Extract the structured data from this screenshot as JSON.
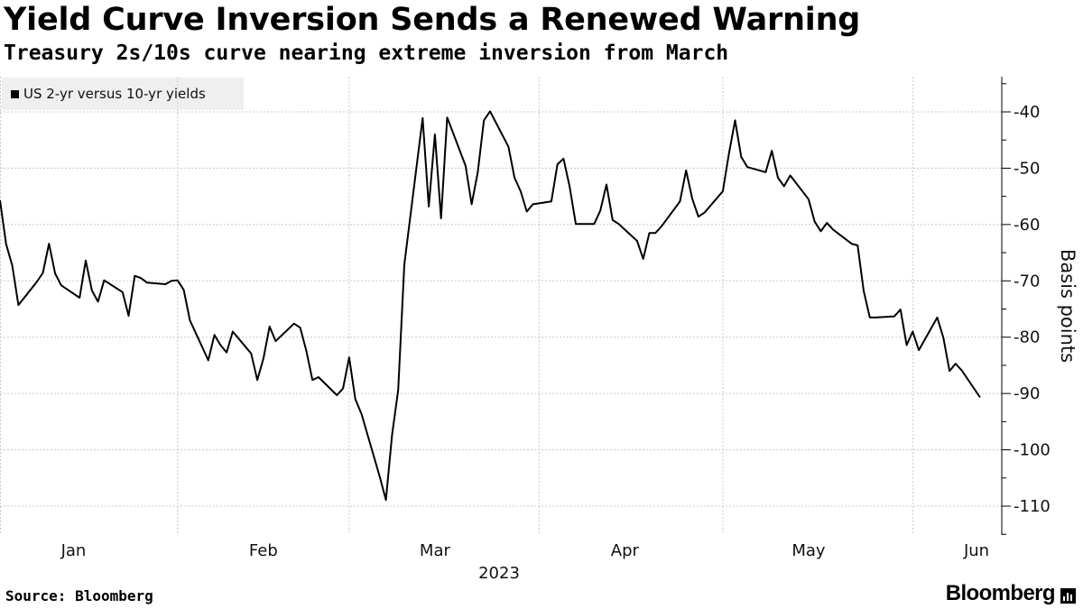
{
  "title": "Yield Curve Inversion Sends a Renewed Warning",
  "subtitle": "Treasury 2s/10s curve nearing extreme inversion from March",
  "source": "Source: Bloomberg",
  "brand": "Bloomberg",
  "chart_data": {
    "type": "line",
    "title": "Yield Curve Inversion Sends a Renewed Warning",
    "subtitle": "Treasury 2s/10s curve nearing extreme inversion from March",
    "ylabel": "Basis points",
    "xlabel": "2023",
    "ylim": [
      -115,
      -35
    ],
    "yticks": [
      -40,
      -50,
      -60,
      -70,
      -80,
      -90,
      -100,
      -110
    ],
    "ytick_labels": [
      "-40",
      "-50",
      "-60",
      "-70",
      "-80",
      "-90",
      "-100",
      "-110"
    ],
    "xticks": [
      "Jan",
      "Feb",
      "Mar",
      "Apr",
      "May",
      "Jun"
    ],
    "xtick_dates": [
      "2023-01-15",
      "2023-02-15",
      "2023-03-15",
      "2023-04-15",
      "2023-05-15",
      "2023-06-15"
    ],
    "month_boundaries": [
      "2023-02-01",
      "2023-03-01",
      "2023-04-01",
      "2023-05-01",
      "2023-06-01"
    ],
    "year_label": "2023",
    "grid": true,
    "y_axis_position": "right",
    "legend_position": "top-left",
    "series": [
      {
        "name": "US 2-yr versus 10-yr yields",
        "color": "#000000",
        "points": [
          [
            "2023-01-03",
            -55.7
          ],
          [
            "2023-01-04",
            -63.5
          ],
          [
            "2023-01-05",
            -67.3
          ],
          [
            "2023-01-06",
            -74.3
          ],
          [
            "2023-01-09",
            -70.2
          ],
          [
            "2023-01-10",
            -68.6
          ],
          [
            "2023-01-11",
            -63.4
          ],
          [
            "2023-01-12",
            -68.7
          ],
          [
            "2023-01-13",
            -70.8
          ],
          [
            "2023-01-16",
            -73.0
          ],
          [
            "2023-01-17",
            -66.4
          ],
          [
            "2023-01-18",
            -71.7
          ],
          [
            "2023-01-19",
            -73.7
          ],
          [
            "2023-01-20",
            -69.9
          ],
          [
            "2023-01-23",
            -72.0
          ],
          [
            "2023-01-24",
            -76.2
          ],
          [
            "2023-01-25",
            -69.1
          ],
          [
            "2023-01-26",
            -69.5
          ],
          [
            "2023-01-27",
            -70.3
          ],
          [
            "2023-01-30",
            -70.6
          ],
          [
            "2023-01-31",
            -70.0
          ],
          [
            "2023-02-01",
            -69.9
          ],
          [
            "2023-02-02",
            -71.6
          ],
          [
            "2023-02-03",
            -77.0
          ],
          [
            "2023-02-06",
            -84.1
          ],
          [
            "2023-02-07",
            -79.6
          ],
          [
            "2023-02-08",
            -81.4
          ],
          [
            "2023-02-09",
            -82.7
          ],
          [
            "2023-02-10",
            -79.0
          ],
          [
            "2023-02-13",
            -82.9
          ],
          [
            "2023-02-14",
            -87.6
          ],
          [
            "2023-02-15",
            -83.8
          ],
          [
            "2023-02-16",
            -78.1
          ],
          [
            "2023-02-17",
            -80.7
          ],
          [
            "2023-02-20",
            -77.6
          ],
          [
            "2023-02-21",
            -78.3
          ],
          [
            "2023-02-22",
            -82.4
          ],
          [
            "2023-02-23",
            -87.6
          ],
          [
            "2023-02-24",
            -87.1
          ],
          [
            "2023-02-27",
            -90.3
          ],
          [
            "2023-02-28",
            -89.1
          ],
          [
            "2023-03-01",
            -83.6
          ],
          [
            "2023-03-02",
            -91.0
          ],
          [
            "2023-03-03",
            -93.6
          ],
          [
            "2023-03-06",
            -104.8
          ],
          [
            "2023-03-07",
            -108.9
          ],
          [
            "2023-03-08",
            -97.4
          ],
          [
            "2023-03-09",
            -89.4
          ],
          [
            "2023-03-10",
            -67.1
          ],
          [
            "2023-03-13",
            -41.1
          ],
          [
            "2023-03-14",
            -56.8
          ],
          [
            "2023-03-15",
            -44.0
          ],
          [
            "2023-03-16",
            -58.9
          ],
          [
            "2023-03-17",
            -41.0
          ],
          [
            "2023-03-20",
            -49.6
          ],
          [
            "2023-03-21",
            -56.4
          ],
          [
            "2023-03-22",
            -50.7
          ],
          [
            "2023-03-23",
            -41.5
          ],
          [
            "2023-03-24",
            -39.9
          ],
          [
            "2023-03-27",
            -46.2
          ],
          [
            "2023-03-28",
            -51.7
          ],
          [
            "2023-03-29",
            -54.1
          ],
          [
            "2023-03-30",
            -57.7
          ],
          [
            "2023-03-31",
            -56.4
          ],
          [
            "2023-04-03",
            -55.9
          ],
          [
            "2023-04-04",
            -49.3
          ],
          [
            "2023-04-05",
            -48.3
          ],
          [
            "2023-04-06",
            -53.3
          ],
          [
            "2023-04-07",
            -59.9
          ],
          [
            "2023-04-10",
            -59.9
          ],
          [
            "2023-04-11",
            -57.5
          ],
          [
            "2023-04-12",
            -52.9
          ],
          [
            "2023-04-13",
            -59.2
          ],
          [
            "2023-04-14",
            -59.9
          ],
          [
            "2023-04-17",
            -62.9
          ],
          [
            "2023-04-18",
            -66.1
          ],
          [
            "2023-04-19",
            -61.5
          ],
          [
            "2023-04-20",
            -61.5
          ],
          [
            "2023-04-21",
            -60.3
          ],
          [
            "2023-04-24",
            -55.9
          ],
          [
            "2023-04-25",
            -50.4
          ],
          [
            "2023-04-26",
            -55.4
          ],
          [
            "2023-04-27",
            -58.6
          ],
          [
            "2023-04-28",
            -57.9
          ],
          [
            "2023-05-01",
            -54.1
          ],
          [
            "2023-05-02",
            -47.4
          ],
          [
            "2023-05-03",
            -41.5
          ],
          [
            "2023-05-04",
            -48.0
          ],
          [
            "2023-05-05",
            -49.8
          ],
          [
            "2023-05-08",
            -50.7
          ],
          [
            "2023-05-09",
            -46.9
          ],
          [
            "2023-05-10",
            -51.7
          ],
          [
            "2023-05-11",
            -53.2
          ],
          [
            "2023-05-12",
            -51.3
          ],
          [
            "2023-05-15",
            -55.5
          ],
          [
            "2023-05-16",
            -59.5
          ],
          [
            "2023-05-17",
            -61.2
          ],
          [
            "2023-05-18",
            -59.7
          ],
          [
            "2023-05-19",
            -60.9
          ],
          [
            "2023-05-22",
            -63.4
          ],
          [
            "2023-05-23",
            -63.7
          ],
          [
            "2023-05-24",
            -71.8
          ],
          [
            "2023-05-25",
            -76.5
          ],
          [
            "2023-05-26",
            -76.5
          ],
          [
            "2023-05-29",
            -76.3
          ],
          [
            "2023-05-30",
            -75.1
          ],
          [
            "2023-05-31",
            -81.4
          ],
          [
            "2023-06-01",
            -79.0
          ],
          [
            "2023-06-02",
            -82.3
          ],
          [
            "2023-06-05",
            -76.5
          ],
          [
            "2023-06-06",
            -80.1
          ],
          [
            "2023-06-07",
            -86.0
          ],
          [
            "2023-06-08",
            -84.7
          ],
          [
            "2023-06-09",
            -85.9
          ],
          [
            "2023-06-12",
            -90.7
          ]
        ]
      }
    ]
  }
}
